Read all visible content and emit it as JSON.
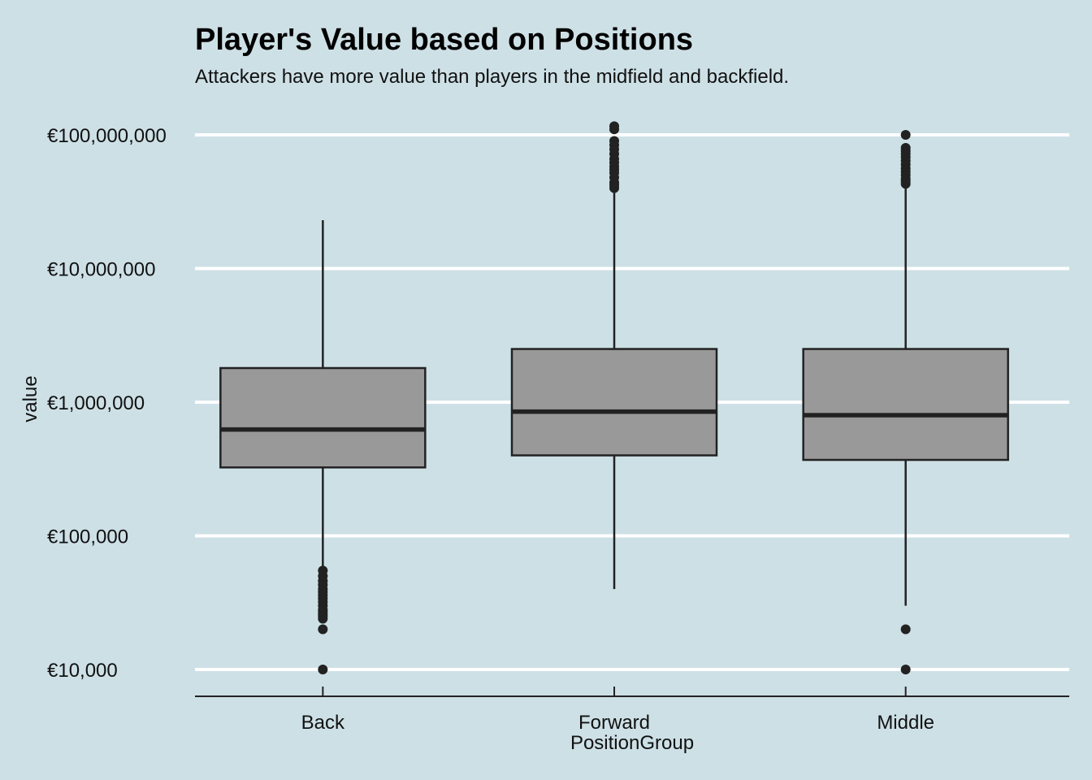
{
  "chart_data": {
    "type": "box",
    "title": "Player's Value based on Positions",
    "subtitle": "Attackers have more value than players in the midfield and backfield.",
    "xlabel": "PositionGroup",
    "ylabel": "value",
    "y_scale": "log10",
    "y_ticks": [
      10000,
      100000,
      1000000,
      10000000,
      100000000
    ],
    "y_tick_labels": [
      "€10,000",
      "€100,000",
      "€1,000,000",
      "€10,000,000",
      "€100,000,000"
    ],
    "ylim": [
      6000,
      120000000
    ],
    "grid": "horizontal-major",
    "colors": {
      "background": "#cde0e6",
      "grid": "#ffffff",
      "box_fill": "#999999",
      "box_stroke": "#222222",
      "axis": "#222222"
    },
    "categories": [
      "Back",
      "Forward",
      "Middle"
    ],
    "boxes": [
      {
        "category": "Back",
        "whisker_low": 30000,
        "q1": 325000,
        "median": 625000,
        "q3": 1800000,
        "whisker_high": 23000000,
        "outliers": [
          10000,
          20000,
          24000,
          25000,
          26000,
          27000,
          28000,
          30000,
          32000,
          34000,
          36000,
          38000,
          40000,
          43000,
          46000,
          50000,
          55000
        ]
      },
      {
        "category": "Forward",
        "whisker_low": 40000,
        "q1": 400000,
        "median": 850000,
        "q3": 2500000,
        "whisker_high": 40000000,
        "outliers": [
          40000000,
          42000000,
          44000000,
          48000000,
          52000000,
          55000000,
          58000000,
          62000000,
          66000000,
          72000000,
          78000000,
          84000000,
          90000000,
          110000000,
          116000000
        ]
      },
      {
        "category": "Middle",
        "whisker_low": 30000,
        "q1": 370000,
        "median": 800000,
        "q3": 2500000,
        "whisker_high": 43000000,
        "outliers": [
          10000,
          20000,
          43000000,
          45000000,
          47000000,
          50000000,
          53000000,
          56000000,
          60000000,
          64000000,
          68000000,
          72000000,
          76000000,
          80000000,
          100000000
        ]
      }
    ]
  }
}
